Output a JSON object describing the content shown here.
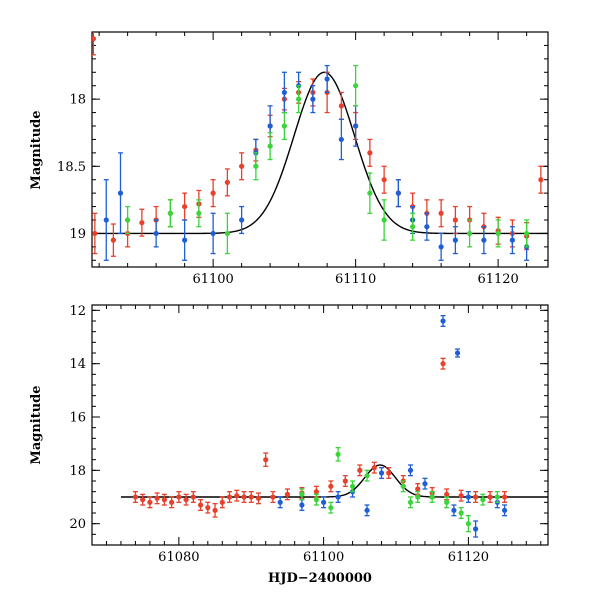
{
  "colors": {
    "red": "#e8402a",
    "blue": "#1f5fd6",
    "green": "#3bd43b",
    "model": "#000000",
    "axis": "#000000"
  },
  "chart_data": [
    {
      "type": "scatter",
      "panel": "top",
      "title": "",
      "xlabel": "",
      "ylabel": "Magnitude",
      "xlim": [
        61091.5,
        61123.5
      ],
      "ylim": [
        19.25,
        17.5
      ],
      "y_inverted": true,
      "xticks": [
        61100,
        61110,
        61120
      ],
      "xtick_labels": [
        "61100",
        "61110",
        "61120"
      ],
      "yticks": [
        18,
        18.5,
        19
      ],
      "ytick_labels": [
        "18",
        "18.5",
        "19"
      ],
      "model_curve": {
        "name": "model",
        "baseline": 19.0,
        "peak_mag": 17.8,
        "peak_x": 61107.8,
        "width": 3.0
      },
      "series": [
        {
          "name": "red",
          "color": "red",
          "points": [
            [
              61091.6,
              17.55,
              0.12
            ],
            [
              61091.7,
              19.0,
              0.15
            ],
            [
              61093,
              19.05,
              0.12
            ],
            [
              61094,
              19.0,
              0.1
            ],
            [
              61095,
              18.92,
              0.1
            ],
            [
              61096,
              18.9,
              0.1
            ],
            [
              61097,
              18.85,
              0.1
            ],
            [
              61098,
              18.8,
              0.1
            ],
            [
              61099,
              18.78,
              0.1
            ],
            [
              61100,
              18.7,
              0.1
            ],
            [
              61101,
              18.62,
              0.1
            ],
            [
              61102,
              18.5,
              0.1
            ],
            [
              61103,
              18.38,
              0.08
            ],
            [
              61104,
              18.2,
              0.08
            ],
            [
              61105,
              18.0,
              0.08
            ],
            [
              61106,
              17.95,
              0.08
            ],
            [
              61107,
              17.95,
              0.1
            ],
            [
              61108,
              17.95,
              0.15
            ],
            [
              61109,
              18.05,
              0.1
            ],
            [
              61110,
              18.2,
              0.1
            ],
            [
              61111,
              18.4,
              0.1
            ],
            [
              61112,
              18.6,
              0.1
            ],
            [
              61113,
              18.7,
              0.1
            ],
            [
              61114,
              18.8,
              0.1
            ],
            [
              61115,
              18.85,
              0.1
            ],
            [
              61116,
              18.85,
              0.1
            ],
            [
              61117,
              18.9,
              0.1
            ],
            [
              61118,
              18.9,
              0.1
            ],
            [
              61119,
              18.95,
              0.1
            ],
            [
              61120,
              18.98,
              0.1
            ],
            [
              61121,
              19.0,
              0.1
            ],
            [
              61122,
              19.02,
              0.1
            ],
            [
              61123,
              18.6,
              0.1
            ]
          ]
        },
        {
          "name": "blue",
          "color": "blue",
          "points": [
            [
              61092.5,
              18.9,
              0.3
            ],
            [
              61093.5,
              18.7,
              0.3
            ],
            [
              61096,
              19.0,
              0.1
            ],
            [
              61098,
              19.05,
              0.15
            ],
            [
              61100,
              19.0,
              0.15
            ],
            [
              61102,
              18.9,
              0.1
            ],
            [
              61103,
              18.4,
              0.1
            ],
            [
              61104,
              18.2,
              0.15
            ],
            [
              61105,
              17.95,
              0.15
            ],
            [
              61106,
              17.9,
              0.1
            ],
            [
              61107,
              18.0,
              0.1
            ],
            [
              61108,
              17.85,
              0.1
            ],
            [
              61109,
              18.3,
              0.15
            ],
            [
              61110,
              18.2,
              0.15
            ],
            [
              61113,
              18.7,
              0.1
            ],
            [
              61114,
              18.9,
              0.1
            ],
            [
              61115,
              18.95,
              0.1
            ],
            [
              61116,
              19.1,
              0.1
            ],
            [
              61117,
              19.05,
              0.1
            ],
            [
              61119,
              19.05,
              0.1
            ],
            [
              61121,
              19.05,
              0.1
            ],
            [
              61122,
              19.1,
              0.1
            ]
          ]
        },
        {
          "name": "green",
          "color": "green",
          "points": [
            [
              61094,
              18.9,
              0.1
            ],
            [
              61097,
              18.85,
              0.1
            ],
            [
              61099,
              18.85,
              0.1
            ],
            [
              61101,
              19.0,
              0.15
            ],
            [
              61103,
              18.5,
              0.1
            ],
            [
              61104,
              18.35,
              0.1
            ],
            [
              61105,
              18.2,
              0.1
            ],
            [
              61106,
              18.0,
              0.1
            ],
            [
              61110,
              17.9,
              0.15
            ],
            [
              61111,
              18.7,
              0.15
            ],
            [
              61112,
              18.9,
              0.15
            ],
            [
              61114,
              18.95,
              0.1
            ],
            [
              61118,
              19.0,
              0.1
            ],
            [
              61120,
              19.0,
              0.1
            ],
            [
              61122,
              19.0,
              0.1
            ]
          ]
        }
      ]
    },
    {
      "type": "scatter",
      "panel": "bottom",
      "title": "",
      "xlabel": "HJD−2400000",
      "ylabel": "Magnitude",
      "xlim": [
        61068,
        61131
      ],
      "ylim": [
        20.8,
        11.8
      ],
      "y_inverted": true,
      "xticks": [
        61080,
        61100,
        61120
      ],
      "xtick_labels": [
        "61080",
        "61100",
        "61120"
      ],
      "yticks": [
        12,
        14,
        16,
        18,
        20
      ],
      "ytick_labels": [
        "12",
        "14",
        "16",
        "18",
        "20"
      ],
      "model_curve": {
        "name": "model",
        "baseline": 19.0,
        "peak_mag": 17.8,
        "peak_x": 61107.8,
        "width": 3.0
      },
      "series": [
        {
          "name": "red",
          "color": "red",
          "points": [
            [
              61074,
              19.0,
              0.2
            ],
            [
              61075,
              19.1,
              0.2
            ],
            [
              61076,
              19.2,
              0.2
            ],
            [
              61077,
              19.05,
              0.2
            ],
            [
              61078,
              19.1,
              0.2
            ],
            [
              61079,
              19.2,
              0.2
            ],
            [
              61080,
              19.0,
              0.2
            ],
            [
              61081,
              19.1,
              0.2
            ],
            [
              61082,
              19.0,
              0.2
            ],
            [
              61083,
              19.3,
              0.2
            ],
            [
              61084,
              19.4,
              0.2
            ],
            [
              61085,
              19.5,
              0.25
            ],
            [
              61086,
              19.2,
              0.2
            ],
            [
              61087,
              19.0,
              0.2
            ],
            [
              61088,
              18.95,
              0.2
            ],
            [
              61089,
              19.0,
              0.2
            ],
            [
              61090,
              19.0,
              0.2
            ],
            [
              61091,
              19.05,
              0.2
            ],
            [
              61092,
              17.6,
              0.25
            ],
            [
              61093,
              19.0,
              0.2
            ],
            [
              61095,
              18.9,
              0.2
            ],
            [
              61097,
              18.85,
              0.2
            ],
            [
              61099,
              18.8,
              0.2
            ],
            [
              61101,
              18.6,
              0.2
            ],
            [
              61103,
              18.4,
              0.2
            ],
            [
              61105,
              18.0,
              0.2
            ],
            [
              61107,
              17.9,
              0.2
            ],
            [
              61109,
              18.1,
              0.2
            ],
            [
              61111,
              18.4,
              0.2
            ],
            [
              61113,
              18.7,
              0.2
            ],
            [
              61115,
              18.85,
              0.2
            ],
            [
              61116.5,
              14.0,
              0.2
            ],
            [
              61117,
              18.9,
              0.2
            ],
            [
              61119,
              18.95,
              0.2
            ],
            [
              61121,
              19.0,
              0.2
            ],
            [
              61123,
              19.0,
              0.2
            ],
            [
              61125,
              19.0,
              0.2
            ]
          ]
        },
        {
          "name": "blue",
          "color": "blue",
          "points": [
            [
              61094,
              19.2,
              0.2
            ],
            [
              61097,
              19.3,
              0.2
            ],
            [
              61100,
              19.2,
              0.2
            ],
            [
              61102,
              19.0,
              0.2
            ],
            [
              61104,
              18.8,
              0.2
            ],
            [
              61106,
              19.5,
              0.2
            ],
            [
              61108,
              18.1,
              0.2
            ],
            [
              61112,
              18.0,
              0.2
            ],
            [
              61114,
              18.5,
              0.2
            ],
            [
              61116.5,
              12.4,
              0.2
            ],
            [
              61118,
              19.5,
              0.2
            ],
            [
              61118.5,
              13.6,
              0.15
            ],
            [
              61120,
              19.0,
              0.2
            ],
            [
              61121,
              20.2,
              0.3
            ],
            [
              61124,
              19.2,
              0.2
            ],
            [
              61125,
              19.5,
              0.2
            ]
          ]
        },
        {
          "name": "green",
          "color": "green",
          "points": [
            [
              61097,
              18.9,
              0.2
            ],
            [
              61099,
              19.1,
              0.2
            ],
            [
              61101,
              19.4,
              0.2
            ],
            [
              61102,
              17.4,
              0.25
            ],
            [
              61104,
              18.6,
              0.2
            ],
            [
              61106,
              18.2,
              0.2
            ],
            [
              61111,
              18.6,
              0.2
            ],
            [
              61112,
              19.2,
              0.2
            ],
            [
              61113,
              19.0,
              0.2
            ],
            [
              61115,
              19.0,
              0.2
            ],
            [
              61117,
              19.2,
              0.2
            ],
            [
              61119,
              19.6,
              0.2
            ],
            [
              61120,
              20.0,
              0.3
            ],
            [
              61122,
              19.1,
              0.2
            ],
            [
              61124,
              19.0,
              0.2
            ]
          ]
        }
      ]
    }
  ]
}
